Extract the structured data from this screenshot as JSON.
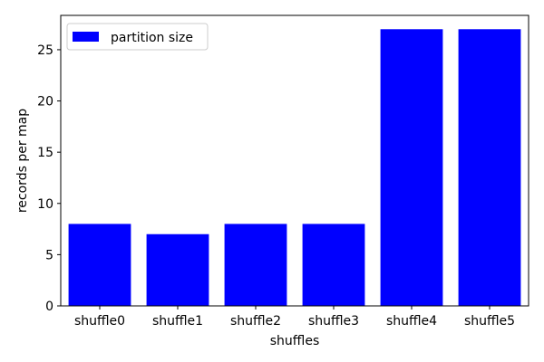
{
  "chart_data": {
    "type": "bar",
    "title": "",
    "xlabel": "shuffles",
    "ylabel": "records per map",
    "categories": [
      "shuffle0",
      "shuffle1",
      "shuffle2",
      "shuffle3",
      "shuffle4",
      "shuffle5"
    ],
    "series": [
      {
        "name": "partition size",
        "values": [
          8,
          7,
          8,
          8,
          27,
          27
        ],
        "color": "#0000ff"
      }
    ],
    "ylim": [
      0,
      28.35
    ],
    "yticks": [
      0,
      5,
      10,
      15,
      20,
      25
    ],
    "grid": false,
    "legend_position": "top-left"
  }
}
